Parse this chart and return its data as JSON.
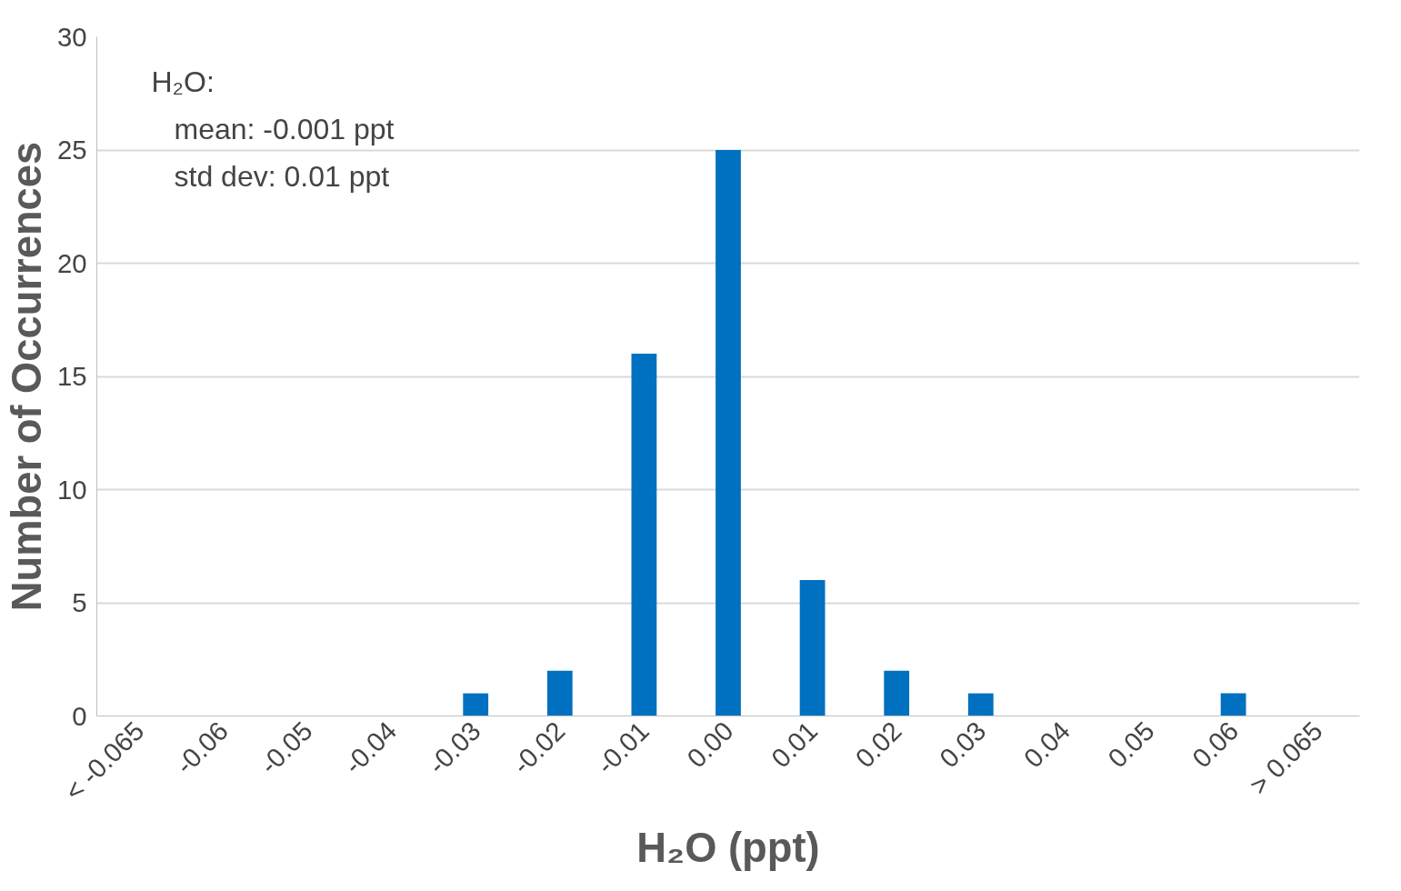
{
  "chart_data": {
    "type": "bar",
    "categories": [
      "< -0.065",
      "-0.06",
      "-0.05",
      "-0.04",
      "-0.03",
      "-0.02",
      "-0.01",
      "0.00",
      "0.01",
      "0.02",
      "0.03",
      "0.04",
      "0.05",
      "0.06",
      "> 0.065"
    ],
    "values": [
      0,
      0,
      0,
      0,
      1,
      2,
      16,
      25,
      6,
      2,
      1,
      0,
      0,
      1,
      0
    ],
    "color": "#0070c0",
    "xlabel": "H₂O (ppt)",
    "ylabel": "Number of Occurrences",
    "ylim": [
      0,
      30
    ],
    "yticks": [
      0,
      5,
      10,
      15,
      20,
      25,
      30
    ],
    "grid": "y",
    "annotations": [
      "H₂O:",
      "mean: -0.001 ppt",
      "std dev: 0.01 ppt"
    ]
  }
}
